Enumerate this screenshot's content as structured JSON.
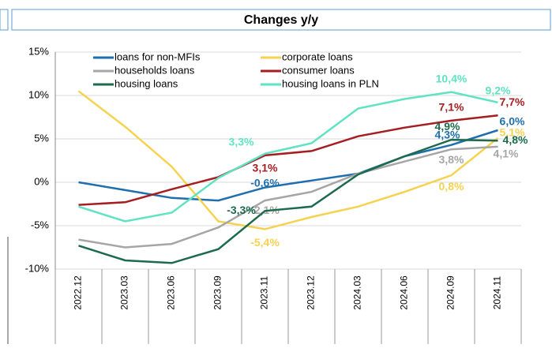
{
  "chart_data": {
    "type": "line",
    "title": "Changes y/y",
    "categories": [
      "2022.12",
      "2023.03",
      "2023.06",
      "2023.09",
      "2023.11",
      "2023.12",
      "2024.03",
      "2024.06",
      "2024.09",
      "2024.11"
    ],
    "ylim": [
      -10,
      15
    ],
    "yticks": [
      {
        "value": -10,
        "label": "-10%"
      },
      {
        "value": -5,
        "label": "-5%"
      },
      {
        "value": 0,
        "label": "0%"
      },
      {
        "value": 5,
        "label": "5%"
      },
      {
        "value": 10,
        "label": "10%"
      },
      {
        "value": 15,
        "label": "15%"
      }
    ],
    "grid": true,
    "series": [
      {
        "name": "loans for non-MFIs",
        "color": "#1f6fae",
        "values": [
          0,
          -0.9,
          -1.8,
          -2.1,
          -0.6,
          0.2,
          1.0,
          3.0,
          4.3,
          6.0
        ],
        "value_labels": [
          null,
          null,
          null,
          null,
          "-0,6%",
          null,
          null,
          null,
          "4,3%",
          "6,0%"
        ]
      },
      {
        "name": "corporate loans",
        "color": "#f5d24f",
        "values": [
          10.5,
          6.4,
          1.8,
          -4.5,
          -5.4,
          -4.0,
          -2.8,
          -1.1,
          0.8,
          5.1
        ],
        "value_labels": [
          null,
          null,
          null,
          null,
          "-5,4%",
          null,
          null,
          null,
          "0,8%",
          "5,1%"
        ]
      },
      {
        "name": "households loans",
        "color": "#a6a6a6",
        "values": [
          -6.6,
          -7.5,
          -7.1,
          -5.2,
          -2.1,
          -1.1,
          1.0,
          2.4,
          3.8,
          4.1
        ],
        "value_labels": [
          null,
          null,
          null,
          null,
          "-2,1%",
          null,
          null,
          null,
          "3,8%",
          "4,1%"
        ]
      },
      {
        "name": "consumer loans",
        "color": "#a51e22",
        "values": [
          -2.6,
          -2.3,
          -0.8,
          0.6,
          3.1,
          3.6,
          5.3,
          6.3,
          7.1,
          7.7
        ],
        "value_labels": [
          null,
          null,
          null,
          null,
          "3,1%",
          null,
          null,
          null,
          "7,1%",
          "7,7%"
        ]
      },
      {
        "name": "housing loans",
        "color": "#1d6b4d",
        "values": [
          -7.3,
          -9.0,
          -9.3,
          -7.7,
          -3.3,
          -2.8,
          0.9,
          3.0,
          4.9,
          4.8
        ],
        "value_labels": [
          null,
          null,
          null,
          null,
          "-3,3%",
          null,
          null,
          null,
          "4,9%",
          "4,8%"
        ]
      },
      {
        "name": "housing loans in PLN",
        "color": "#5fe3c2",
        "values": [
          -2.8,
          -4.5,
          -3.5,
          0.5,
          3.3,
          4.5,
          8.5,
          9.6,
          10.4,
          9.2
        ],
        "value_labels": [
          null,
          null,
          null,
          null,
          "3,3%",
          null,
          null,
          null,
          "10,4%",
          "9,2%"
        ]
      }
    ]
  }
}
